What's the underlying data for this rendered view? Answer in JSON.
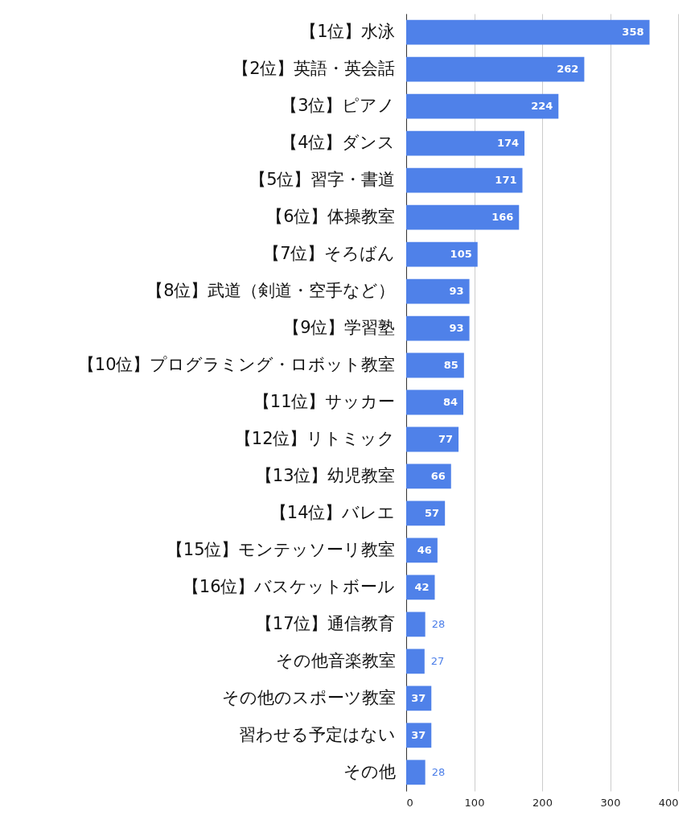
{
  "chart_data": {
    "type": "bar",
    "orientation": "horizontal",
    "categories": [
      "【1位】水泳",
      "【2位】英語・英会話",
      "【3位】ピアノ",
      "【4位】ダンス",
      "【5位】習字・書道",
      "【6位】体操教室",
      "【7位】そろばん",
      "【8位】武道（剣道・空手など）",
      "【9位】学習塾",
      "【10位】プログラミング・ロボット教室",
      "【11位】サッカー",
      "【12位】リトミック",
      "【13位】幼児教室",
      "【14位】バレエ",
      "【15位】モンテッソーリ教室",
      "【16位】バスケットボール",
      "【17位】通信教育",
      "その他音楽教室",
      "その他のスポーツ教室",
      "習わせる予定はない",
      "その他"
    ],
    "values": [
      358,
      262,
      224,
      174,
      171,
      166,
      105,
      93,
      93,
      85,
      84,
      77,
      66,
      57,
      46,
      42,
      28,
      27,
      37,
      37,
      28
    ],
    "color": "#4f81e9",
    "xlim": [
      0,
      400
    ],
    "xticks": [
      0,
      100,
      200,
      300,
      400
    ],
    "grid": "x",
    "data_labels": true
  }
}
